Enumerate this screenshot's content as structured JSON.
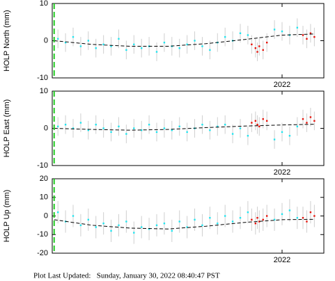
{
  "chart_data": [
    {
      "type": "scatter",
      "ylabel": "HOLP North (mm)",
      "xlim": [
        2020.79,
        2022.22
      ],
      "xticks": [
        2022
      ],
      "ylim": [
        -10,
        10
      ],
      "yticks": [
        -10,
        0,
        10
      ],
      "vline": 2020.8,
      "series": [
        {
          "color": "#22e5f0",
          "error": 2.5,
          "x": [
            2020.82,
            2020.86,
            2020.9,
            2020.94,
            2020.98,
            2021.02,
            2021.06,
            2021.1,
            2021.14,
            2021.18,
            2021.22,
            2021.26,
            2021.3,
            2021.34,
            2021.38,
            2021.42,
            2021.46,
            2021.5,
            2021.54,
            2021.58,
            2021.62,
            2021.66,
            2021.7,
            2021.74,
            2021.78,
            2021.82,
            2021.96,
            2022.0,
            2022.04,
            2022.08
          ],
          "values": [
            0.5,
            -0.5,
            1,
            -1.5,
            0,
            -2,
            -1,
            -1.5,
            0.5,
            -2.5,
            -1,
            -2,
            -1.5,
            -3,
            -0.5,
            -1.5,
            -2,
            -1,
            0,
            -1.5,
            -2.5,
            -0.5,
            1,
            0,
            2,
            1.5,
            3,
            2.5,
            1.5,
            3.5
          ]
        },
        {
          "color": "#e8140c",
          "error": 2.5,
          "x": [
            2021.84,
            2021.86,
            2021.87,
            2021.88,
            2021.9,
            2021.92,
            2022.11,
            2022.13,
            2022.15,
            2022.17
          ],
          "values": [
            -1,
            -2,
            -3,
            -1.5,
            -2.5,
            -0.5,
            1.5,
            0.5,
            2,
            1
          ]
        }
      ],
      "trend": {
        "x": [
          2020.8,
          2021.0,
          2021.2,
          2021.4,
          2021.6,
          2021.8,
          2022.0,
          2022.17
        ],
        "values": [
          0,
          -1,
          -1.5,
          -1.5,
          -0.8,
          0.3,
          1.5,
          1.8
        ]
      }
    },
    {
      "type": "scatter",
      "ylabel": "HOLP East (mm)",
      "xlim": [
        2020.79,
        2022.22
      ],
      "xticks": [
        2022
      ],
      "ylim": [
        -10,
        10
      ],
      "yticks": [
        -10,
        0,
        10
      ],
      "vline": 2020.8,
      "series": [
        {
          "color": "#22e5f0",
          "error": 2.5,
          "x": [
            2020.82,
            2020.86,
            2020.9,
            2020.94,
            2020.98,
            2021.02,
            2021.06,
            2021.1,
            2021.14,
            2021.18,
            2021.22,
            2021.26,
            2021.3,
            2021.34,
            2021.38,
            2021.42,
            2021.46,
            2021.5,
            2021.54,
            2021.58,
            2021.62,
            2021.66,
            2021.7,
            2021.74,
            2021.78,
            2021.82,
            2021.96,
            2022.0,
            2022.04,
            2022.08
          ],
          "values": [
            0.5,
            1,
            0,
            1.5,
            -0.5,
            1,
            0,
            -1,
            0.5,
            -1.5,
            0,
            -0.5,
            1,
            -1,
            0,
            -0.5,
            0.5,
            -1,
            0,
            1,
            -0.5,
            0.5,
            1,
            -1.5,
            0,
            -2,
            -3,
            -1,
            -2,
            0.5
          ]
        },
        {
          "color": "#e8140c",
          "error": 2.5,
          "x": [
            2021.84,
            2021.86,
            2021.87,
            2021.88,
            2021.9,
            2021.92,
            2022.11,
            2022.13,
            2022.15,
            2022.17
          ],
          "values": [
            1.5,
            2,
            1,
            0.5,
            2.5,
            2,
            2.5,
            1.5,
            3,
            2
          ]
        }
      ],
      "trend": {
        "x": [
          2020.8,
          2021.0,
          2021.2,
          2021.4,
          2021.6,
          2021.8,
          2022.0,
          2022.17
        ],
        "values": [
          0,
          -0.3,
          -0.5,
          -0.3,
          0.2,
          0.6,
          0.9,
          1.1
        ]
      }
    },
    {
      "type": "scatter",
      "ylabel": "HOLP Up (mm)",
      "xlim": [
        2020.79,
        2022.22
      ],
      "xticks": [
        2022
      ],
      "ylim": [
        -20,
        20
      ],
      "yticks": [
        -20,
        -10,
        0,
        10,
        20
      ],
      "vline": 2020.8,
      "series": [
        {
          "color": "#22e5f0",
          "error": 6,
          "x": [
            2020.82,
            2020.86,
            2020.9,
            2020.94,
            2020.98,
            2021.02,
            2021.06,
            2021.1,
            2021.14,
            2021.18,
            2021.22,
            2021.26,
            2021.3,
            2021.34,
            2021.38,
            2021.42,
            2021.46,
            2021.5,
            2021.54,
            2021.58,
            2021.62,
            2021.66,
            2021.7,
            2021.74,
            2021.78,
            2021.82,
            2021.96,
            2022.0,
            2022.04,
            2022.08
          ],
          "values": [
            2,
            -3,
            0,
            -5,
            -2,
            -6,
            -4,
            -8,
            -5,
            -3,
            -9,
            -6,
            -7,
            -5,
            -4,
            -8,
            -3,
            -6,
            -2,
            -5,
            -1,
            -4,
            0,
            -3,
            -1,
            2,
            -2,
            1,
            3,
            -1
          ]
        },
        {
          "color": "#e8140c",
          "error": 6,
          "x": [
            2021.84,
            2021.86,
            2021.87,
            2021.88,
            2021.9,
            2021.92,
            2022.11,
            2022.13,
            2022.15,
            2022.17
          ],
          "values": [
            -2,
            -4,
            -1,
            -3,
            -2,
            0,
            -1,
            -3,
            2,
            0
          ]
        }
      ],
      "trend": {
        "x": [
          2020.8,
          2021.0,
          2021.2,
          2021.4,
          2021.6,
          2021.8,
          2022.0,
          2022.17
        ],
        "values": [
          -2,
          -5,
          -6.5,
          -7,
          -5.5,
          -3.5,
          -2,
          -1.8
        ]
      }
    }
  ],
  "footer": "Plot Last Updated:   Sunday, January 30, 2022 08:40:47 PST"
}
